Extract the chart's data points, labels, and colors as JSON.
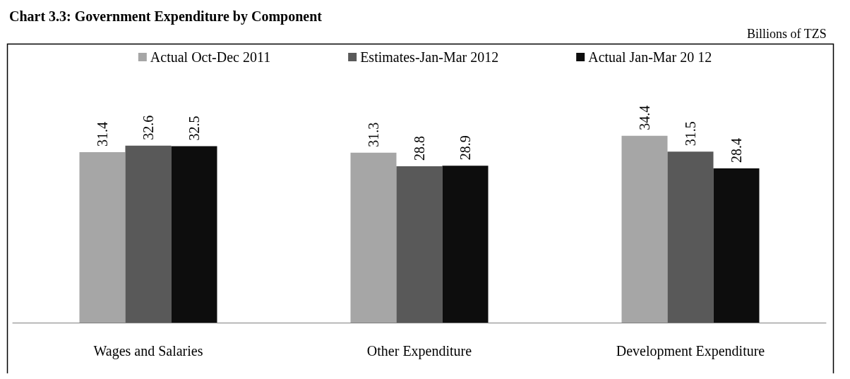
{
  "chart_data": {
    "type": "bar",
    "title": "Chart 3.3: Government Expenditure by Component",
    "annotations": [
      "Billions of TZS"
    ],
    "categories": [
      "Wages and Salaries",
      "Other Expenditure",
      "Development Expenditure"
    ],
    "series": [
      {
        "name": "Actual Oct-Dec 2011",
        "color": "#a6a6a6",
        "values": [
          31.4,
          31.3,
          34.4
        ]
      },
      {
        "name": "Estimates-Jan-Mar 2012",
        "color": "#595959",
        "values": [
          32.6,
          28.8,
          31.5
        ]
      },
      {
        "name": "Actual Jan-Mar 20 12",
        "color": "#0d0d0d",
        "values": [
          32.5,
          28.9,
          28.4
        ]
      }
    ],
    "data_labels": true,
    "legend": "top"
  }
}
